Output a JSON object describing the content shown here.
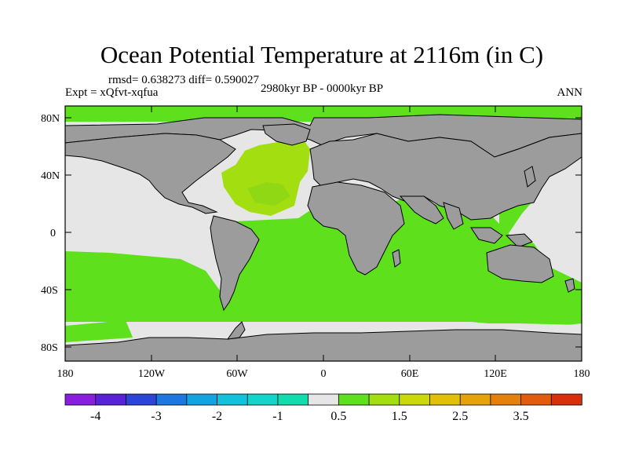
{
  "title": "Ocean Potential Temperature at 2116m (in C)",
  "stats": "rmsd= 0.638273 diff= 0.590027",
  "experiment": "Expt = xQfvt-xqfua",
  "period": "2980kyr BP - 0000kyr BP",
  "season": "ANN",
  "axes": {
    "lat_ticks": [
      "80N",
      "40N",
      "0",
      "40S",
      "80S"
    ],
    "lon_ticks": [
      "180",
      "120W",
      "60W",
      "0",
      "60E",
      "120E",
      "180"
    ]
  },
  "colorbar": {
    "colors": [
      "#8a1ee0",
      "#5a22d8",
      "#2c44d8",
      "#1c78e0",
      "#12a4e2",
      "#12c2dc",
      "#12d4c8",
      "#12dcae",
      "#e6e6e6",
      "#5ee01c",
      "#a2de10",
      "#cbd80c",
      "#e2c00a",
      "#e6a20a",
      "#e6800c",
      "#e25c0e",
      "#d8300c"
    ],
    "labels": [
      "-4",
      "-3",
      "-2",
      "-1",
      "0.5",
      "1.5",
      "2.5",
      "3.5"
    ]
  },
  "colors": {
    "land": "#9c9c9c",
    "neutral_ocean": "#e6e6e6",
    "warm_anomaly": "#5ee01c",
    "strong_anomaly": "#a2de10"
  }
}
